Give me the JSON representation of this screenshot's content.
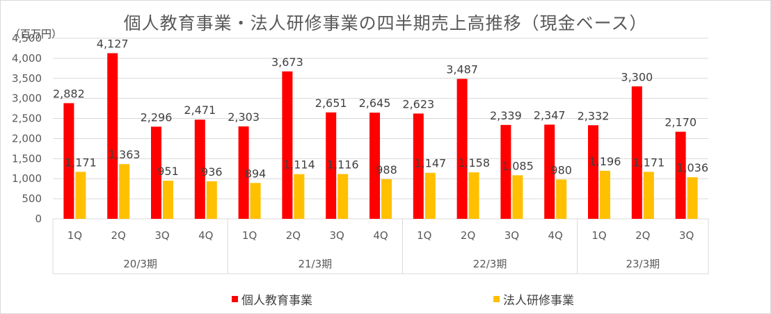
{
  "chart_data": {
    "type": "bar",
    "title": "個人教育事業・法人研修事業の四半期売上高推移（現金ベース）",
    "unit_label": "（百万円）",
    "categories": [
      "1Q",
      "2Q",
      "3Q",
      "4Q",
      "1Q",
      "2Q",
      "3Q",
      "4Q",
      "1Q",
      "2Q",
      "3Q",
      "4Q",
      "1Q",
      "2Q",
      "3Q"
    ],
    "groups": [
      {
        "label": "20/3期",
        "count": 4
      },
      {
        "label": "21/3期",
        "count": 4
      },
      {
        "label": "22/3期",
        "count": 4
      },
      {
        "label": "23/3期",
        "count": 3
      }
    ],
    "series": [
      {
        "name": "個人教育事業",
        "color": "#ff0000",
        "values": [
          2882,
          4127,
          2296,
          2471,
          2303,
          3673,
          2651,
          2645,
          2623,
          3487,
          2339,
          2347,
          2332,
          3300,
          2170
        ],
        "labels": [
          "2,882",
          "4,127",
          "2,296",
          "2,471",
          "2,303",
          "3,673",
          "2,651",
          "2,645",
          "2,623",
          "3,487",
          "2,339",
          "2,347",
          "2,332",
          "3,300",
          "2,170"
        ]
      },
      {
        "name": "法人研修事業",
        "color": "#ffc000",
        "values": [
          1171,
          1363,
          951,
          936,
          894,
          1114,
          1116,
          988,
          1147,
          1158,
          1085,
          980,
          1196,
          1171,
          1036
        ],
        "labels": [
          "1,171",
          "1,363",
          "951",
          "936",
          "894",
          "1,114",
          "1,116",
          "988",
          "1,147",
          "1,158",
          "1,085",
          "980",
          "1,196",
          "1,171",
          "1,036"
        ]
      }
    ],
    "y_ticks": [
      "0",
      "500",
      "1,000",
      "1,500",
      "2,000",
      "2,500",
      "3,000",
      "3,500",
      "4,000",
      "4,500"
    ],
    "ylim": [
      0,
      4500
    ],
    "grid": true,
    "legend_position": "bottom"
  }
}
